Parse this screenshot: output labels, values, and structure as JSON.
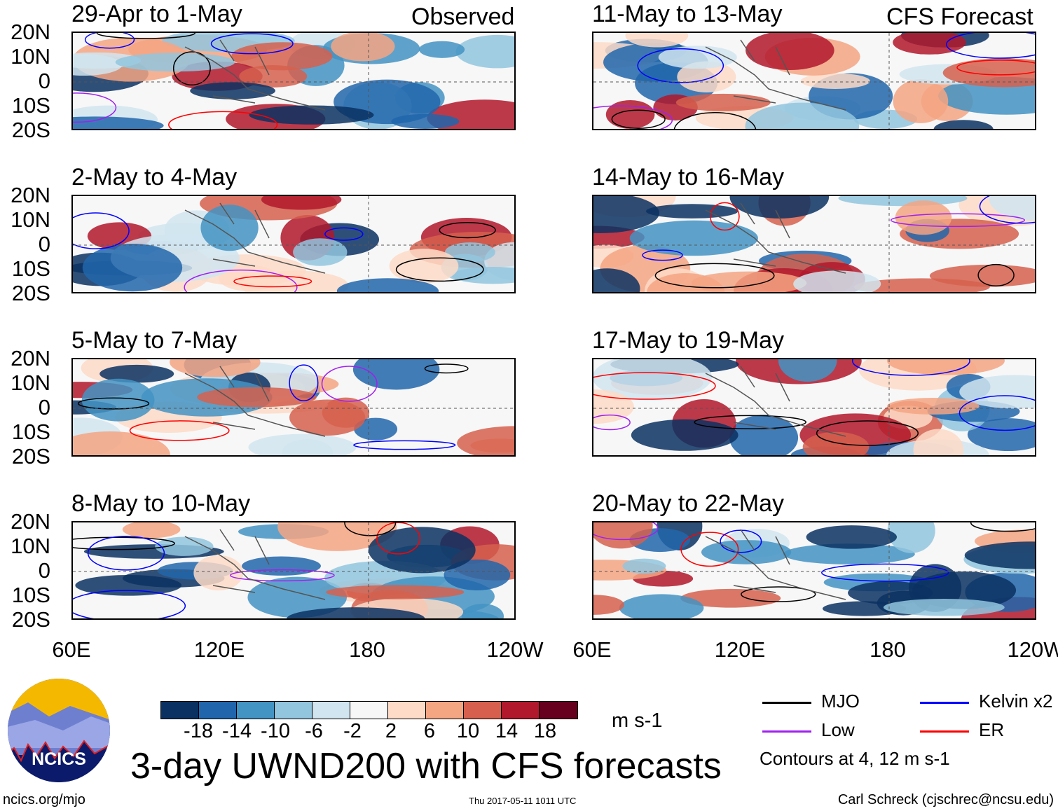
{
  "panels": [
    {
      "label": "29-Apr to 1-May",
      "tag": "Observed"
    },
    {
      "label": "2-May to 4-May"
    },
    {
      "label": "5-May to 7-May"
    },
    {
      "label": "8-May to 10-May"
    },
    {
      "label": "11-May to 13-May",
      "tag": "CFS Forecast"
    },
    {
      "label": "14-May to 16-May"
    },
    {
      "label": "17-May to 19-May"
    },
    {
      "label": "20-May to 22-May"
    }
  ],
  "chart_data": {
    "type": "heatmap",
    "title": "3-day UWND200 with CFS forecasts",
    "units": "m s-1",
    "y_ticks": [
      "20N",
      "10N",
      "0",
      "10S",
      "20S"
    ],
    "x_ticks": [
      "60E",
      "120E",
      "180",
      "120W"
    ],
    "colorbar": {
      "levels": [
        "-18",
        "-14",
        "-10",
        "-6",
        "-2",
        "2",
        "6",
        "10",
        "14",
        "18"
      ],
      "colors": [
        "#0a3161",
        "#2166ac",
        "#4393c3",
        "#92c5de",
        "#d1e5f0",
        "#f7f7f7",
        "#fddbc7",
        "#f4a582",
        "#d6604d",
        "#b2182b",
        "#67001f"
      ]
    },
    "legend": [
      {
        "name": "MJO",
        "color": "#000000"
      },
      {
        "name": "Kelvin x2",
        "color": "#0000ff"
      },
      {
        "name": "Low",
        "color": "#a020f0"
      },
      {
        "name": "ER",
        "color": "#ff0000"
      }
    ],
    "contour_note": "Contours at 4, 12 m s-1"
  },
  "footer": {
    "left": "ncics.org/mjo",
    "center": "Thu 2017-05-11 1011 UTC",
    "right": "Carl Schreck (cjschrec@ncsu.edu)",
    "logo_text": "NCICS"
  }
}
